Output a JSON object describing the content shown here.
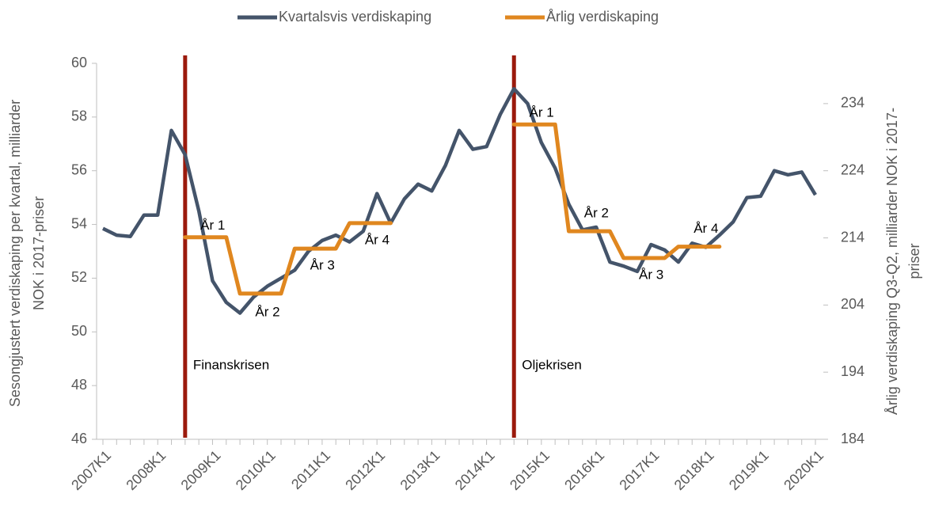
{
  "chart_data": {
    "type": "line",
    "y_label": [
      "Sesongjustert verdiskaping per kvartal, milliarder",
      "NOK i 2017-priser"
    ],
    "y2_label": [
      "Årlig verdiskaping Q3-Q2, milliarder NOK i 2017-",
      "priser"
    ],
    "categories": [
      "2007K1",
      null,
      null,
      null,
      "2008K1",
      null,
      null,
      null,
      "2009K1",
      null,
      null,
      null,
      "2010K1",
      null,
      null,
      null,
      "2011K1",
      null,
      null,
      null,
      "2012K1",
      null,
      null,
      null,
      "2013K1",
      null,
      null,
      null,
      "2014K1",
      null,
      null,
      null,
      "2015K1",
      null,
      null,
      null,
      "2016K1",
      null,
      null,
      null,
      "2017K1",
      null,
      null,
      null,
      "2018K1",
      null,
      null,
      null,
      "2019K1",
      null,
      null,
      null,
      "2020K1"
    ],
    "series": [
      {
        "name": "Kvartalsvis verdiskaping",
        "color": "#44546a",
        "values": [
          53.85,
          53.6,
          53.55,
          54.35,
          54.35,
          57.5,
          56.6,
          54.5,
          51.9,
          51.1,
          50.7,
          51.3,
          51.7,
          52.0,
          52.3,
          53.0,
          53.4,
          53.6,
          53.35,
          53.75,
          55.15,
          54.05,
          54.95,
          55.5,
          55.25,
          56.2,
          57.5,
          56.8,
          56.9,
          58.1,
          59.05,
          58.5,
          57.05,
          56.1,
          54.75,
          53.8,
          53.9,
          52.6,
          52.45,
          52.25,
          53.25,
          53.05,
          52.6,
          53.3,
          53.15,
          53.6,
          54.1,
          55.0,
          55.05,
          56.0,
          55.85,
          55.95,
          55.1
        ]
      },
      {
        "name": "Årlig verdiskaping",
        "color": "#e0871f",
        "axis": "y2",
        "values": [
          null,
          null,
          null,
          null,
          null,
          null,
          214.1,
          214.1,
          214.1,
          214.1,
          205.7,
          205.7,
          205.7,
          205.7,
          212.4,
          212.4,
          212.4,
          212.4,
          216.2,
          216.2,
          216.2,
          216.2,
          null,
          null,
          null,
          null,
          null,
          null,
          null,
          null,
          230.9,
          230.9,
          230.9,
          230.9,
          215.0,
          215.0,
          215.0,
          215.0,
          211.0,
          211.0,
          211.0,
          211.0,
          212.7,
          212.7,
          212.7,
          212.7,
          null,
          null,
          null,
          null,
          null,
          null,
          null
        ]
      }
    ],
    "annotations": [
      "År 1",
      "År 2",
      "År 3",
      "År 4",
      "År 1",
      "År 2",
      "År 3",
      "År 4",
      "Finanskrisen",
      "Oljekrisen"
    ],
    "ylim": [
      46,
      60
    ],
    "yticks": [
      46,
      48,
      50,
      52,
      54,
      56,
      58,
      60
    ],
    "y2lim": [
      184,
      240
    ],
    "y2ticks": [
      184,
      194,
      204,
      214,
      224,
      234
    ],
    "legend": "top",
    "crisis_color": "#9b1a0c"
  }
}
